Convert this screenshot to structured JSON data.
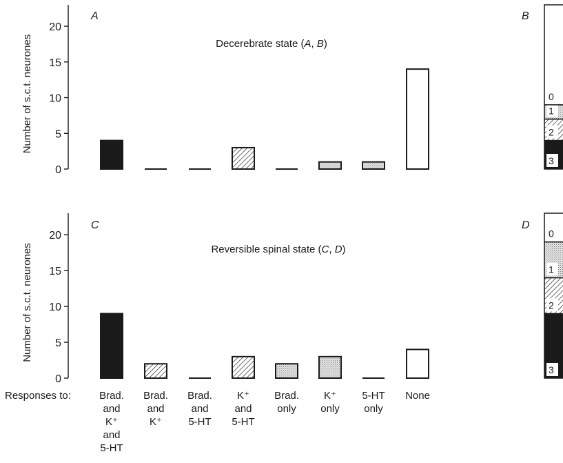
{
  "colors": {
    "solid": "#1a1a1a",
    "open": "#ffffff",
    "stipple": "#d8d8d8"
  },
  "fills": {
    "Brad. and K+ and 5-HT": "solid",
    "Brad. and K+": "hatch",
    "Brad. and 5-HT": "hatch",
    "K+ and 5-HT": "hatch",
    "Brad. only": "stipple",
    "K+ only": "stipple",
    "5-HT only": "stipple",
    "None": "open"
  },
  "responses_label": "Responses to:",
  "categories": [
    [
      "Brad.",
      "and",
      "K⁺",
      "and",
      "5-HT"
    ],
    [
      "Brad.",
      "and",
      "K⁺"
    ],
    [
      "Brad.",
      "and",
      "5-HT"
    ],
    [
      "K⁺",
      "and",
      "5-HT"
    ],
    [
      "Brad.",
      "only"
    ],
    [
      "K⁺",
      "only"
    ],
    [
      "5-HT",
      "only"
    ],
    [
      "None"
    ]
  ],
  "chart_data": [
    {
      "type": "bar",
      "panel": "A",
      "subtitle": "Decerebrate state (A, B)",
      "ylabel": "Number of s.c.t. neurones",
      "ylim": [
        0,
        23
      ],
      "yticks": [
        0,
        5,
        10,
        15,
        20
      ],
      "categories": [
        "Brad. and K+ and 5-HT",
        "Brad. and K+",
        "Brad. and 5-HT",
        "K+ and 5-HT",
        "Brad. only",
        "K+ only",
        "5-HT only",
        "None"
      ],
      "values": [
        4,
        0,
        0,
        3,
        0,
        1,
        1,
        14
      ]
    },
    {
      "type": "bar",
      "panel": "C",
      "subtitle": "Reversible spinal state (C, D)",
      "ylabel": "Number of s.c.t. neurones",
      "ylim": [
        0,
        23
      ],
      "yticks": [
        0,
        5,
        10,
        15,
        20
      ],
      "categories": [
        "Brad. and K+ and 5-HT",
        "Brad. and K+",
        "Brad. and 5-HT",
        "K+ and 5-HT",
        "Brad. only",
        "K+ only",
        "5-HT only",
        "None"
      ],
      "values": [
        9,
        2,
        0,
        3,
        2,
        3,
        0,
        4
      ]
    },
    {
      "type": "bar",
      "stacked": true,
      "panel": "B",
      "segments": [
        {
          "label": "3",
          "value": 4,
          "fill": "solid"
        },
        {
          "label": "2",
          "value": 3,
          "fill": "hatch"
        },
        {
          "label": "1",
          "value": 2,
          "fill": "stipple"
        },
        {
          "label": "0",
          "value": 14,
          "fill": "open"
        }
      ]
    },
    {
      "type": "bar",
      "stacked": true,
      "panel": "D",
      "segments": [
        {
          "label": "3",
          "value": 9,
          "fill": "solid"
        },
        {
          "label": "2",
          "value": 5,
          "fill": "hatch"
        },
        {
          "label": "1",
          "value": 5,
          "fill": "stipple"
        },
        {
          "label": "0",
          "value": 4,
          "fill": "open"
        }
      ]
    }
  ]
}
